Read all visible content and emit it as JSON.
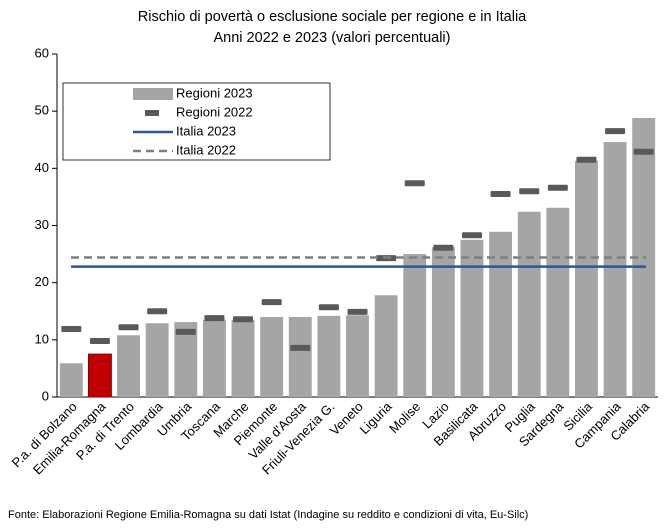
{
  "chart_data": {
    "type": "bar",
    "title": "Rischio di povertà o esclusione sociale per regione e in Italia",
    "subtitle": "Anni 2022 e 2023 (valori percentuali)",
    "source": "Fonte: Elaborazioni Regione Emilia-Romagna su dati Istat (Indagine su reddito e condizioni di vita, Eu-Silc)",
    "categories": [
      "P.a. di Bolzano",
      "Emilia-Romagna",
      "P.a. di Trento",
      "Lombardia",
      "Umbria",
      "Toscana",
      "Marche",
      "Piemonte",
      "Valle d'Aosta",
      "Friuli-Venezia G.",
      "Veneto",
      "Liguria",
      "Molise",
      "Lazio",
      "Basilicata",
      "Abruzzo",
      "Puglia",
      "Sardegna",
      "Sicilia",
      "Campania",
      "Calabria"
    ],
    "series": [
      {
        "name": "Regioni 2023",
        "color": "#a5a5a5",
        "highlight_color": "#c00000",
        "highlight_index": 1,
        "values": [
          5.9,
          7.5,
          10.8,
          12.9,
          13.1,
          13.5,
          13.5,
          14.0,
          14.0,
          14.2,
          14.3,
          17.8,
          25.0,
          26.2,
          27.5,
          28.9,
          32.4,
          33.1,
          41.3,
          44.6,
          48.8
        ]
      },
      {
        "name": "Regioni 2022",
        "color": "#595959",
        "style": "marker",
        "values": [
          11.9,
          9.8,
          12.2,
          15.0,
          11.4,
          13.8,
          13.6,
          16.6,
          8.6,
          15.7,
          14.9,
          24.3,
          37.4,
          26.1,
          28.3,
          35.5,
          36.0,
          36.6,
          41.5,
          46.5,
          42.9
        ]
      }
    ],
    "reference_lines": [
      {
        "name": "Italia 2023",
        "color": "#2f5597",
        "dashed": false,
        "value": 22.8
      },
      {
        "name": "Italia 2022",
        "color": "#7f7f7f",
        "dashed": true,
        "value": 24.4
      }
    ],
    "ylim": [
      0,
      60
    ],
    "yticks": [
      0,
      10,
      20,
      30,
      40,
      50,
      60
    ],
    "grid": false,
    "legend": "upper left"
  }
}
